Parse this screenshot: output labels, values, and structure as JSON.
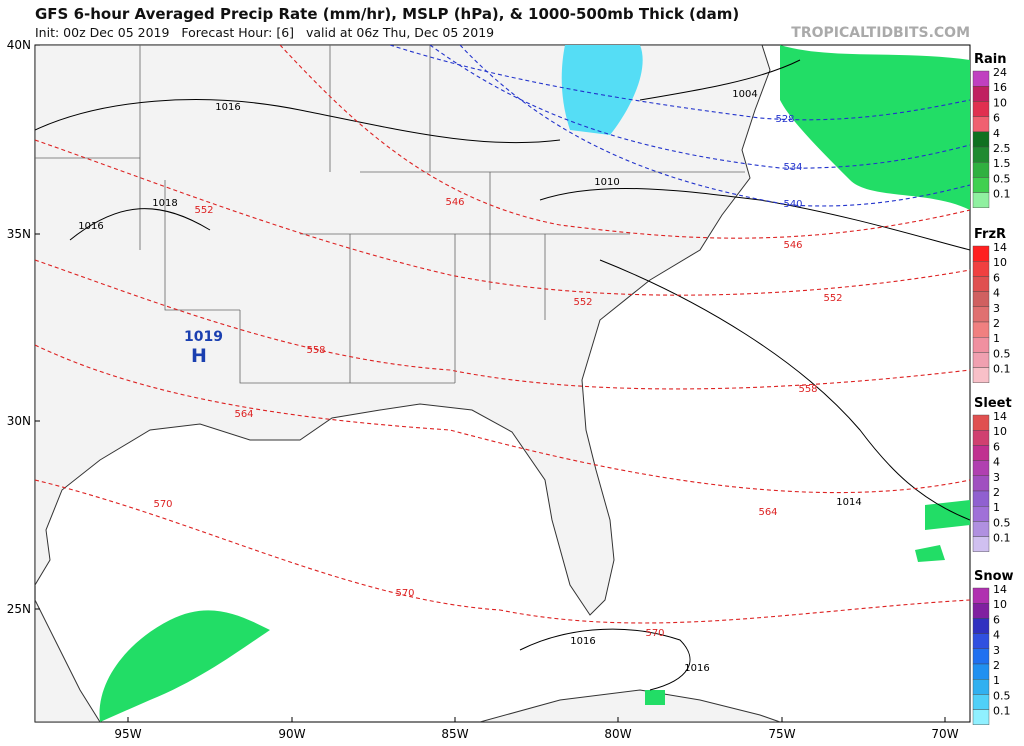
{
  "header": {
    "title": "GFS 6-hour Averaged Precip Rate (mm/hr), MSLP (hPa), & 1000-500mb Thick (dam)",
    "init": "Init: 00z Dec 05 2019   Forecast Hour: [6]   valid at 06z Thu, Dec 05 2019",
    "watermark": "TROPICALTIDBITS.COM"
  },
  "map": {
    "lat_labels": [
      "40N",
      "35N",
      "30N",
      "25N"
    ],
    "lon_labels": [
      "95W",
      "90W",
      "85W",
      "80W",
      "75W",
      "70W"
    ],
    "high": {
      "pressure": "1019",
      "label": "H"
    },
    "isobar_labels": [
      "1016",
      "1018",
      "1016",
      "1004",
      "1010",
      "1014",
      "1016",
      "1016"
    ],
    "thickness_labels": [
      "528",
      "534",
      "540",
      "546",
      "546",
      "552",
      "552",
      "552",
      "558",
      "558",
      "564",
      "564",
      "570",
      "570",
      "570"
    ]
  },
  "legend": [
    {
      "title": "Rain",
      "ticks": [
        "24",
        "16",
        "10",
        "6",
        "4",
        "2.5",
        "1.5",
        "0.5",
        "0.1"
      ]
    },
    {
      "title": "FrzR",
      "ticks": [
        "14",
        "10",
        "6",
        "4",
        "3",
        "2",
        "1",
        "0.5",
        "0.1"
      ]
    },
    {
      "title": "Sleet",
      "ticks": [
        "14",
        "10",
        "6",
        "4",
        "3",
        "2",
        "1",
        "0.5",
        "0.1"
      ]
    },
    {
      "title": "Snow",
      "ticks": [
        "14",
        "10",
        "6",
        "4",
        "3",
        "2",
        "1",
        "0.5",
        "0.1"
      ]
    }
  ]
}
